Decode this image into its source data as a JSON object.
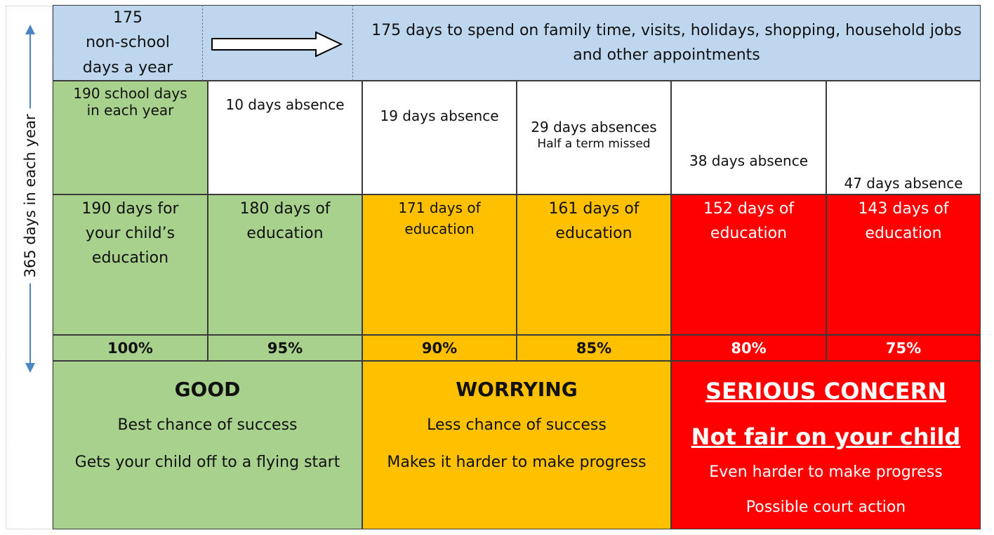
{
  "side": {
    "label": "365 days in each year"
  },
  "top_row": {
    "non_school_line1": "175",
    "non_school_line2": "non-school",
    "non_school_line3": "days a year",
    "description": "175 days to spend on family time, visits, holidays, shopping, household jobs and other appointments"
  },
  "absence_row": [
    {
      "line1": "190 school days",
      "line2": "in each year"
    },
    {
      "line1": "10 days absence"
    },
    {
      "line1": "19 days absence"
    },
    {
      "line1": "29 days absences",
      "line2": "Half a term missed"
    },
    {
      "line1": "38 days absence"
    },
    {
      "line1": "47 days absence"
    }
  ],
  "education_row": [
    {
      "line1": "190 days for",
      "line2": "your child’s",
      "line3": "education"
    },
    {
      "line1": "180 days of",
      "line2": "education"
    },
    {
      "line1": "171 days of",
      "line2": "education"
    },
    {
      "line1": "161 days of",
      "line2": "education"
    },
    {
      "line1": "152 days of",
      "line2": "education"
    },
    {
      "line1": "143 days of",
      "line2": "education"
    }
  ],
  "percent_row": [
    "100%",
    "95%",
    "90%",
    "85%",
    "80%",
    "75%"
  ],
  "categories": {
    "good": {
      "title": "GOOD",
      "line1": "Best chance of success",
      "line2": "Gets your child off to a flying start"
    },
    "worrying": {
      "title": "WORRYING",
      "line1": "Less chance of success",
      "line2": "Makes it harder to make progress"
    },
    "serious": {
      "title": "SERIOUS CONCERN",
      "title2": "Not fair on your child",
      "line1": "Even harder to make progress",
      "line2": "Possible court action"
    }
  },
  "colors": {
    "blue": "#bfd7ee",
    "green": "#a9d18e",
    "amber": "#ffc000",
    "red": "#ff0000"
  }
}
